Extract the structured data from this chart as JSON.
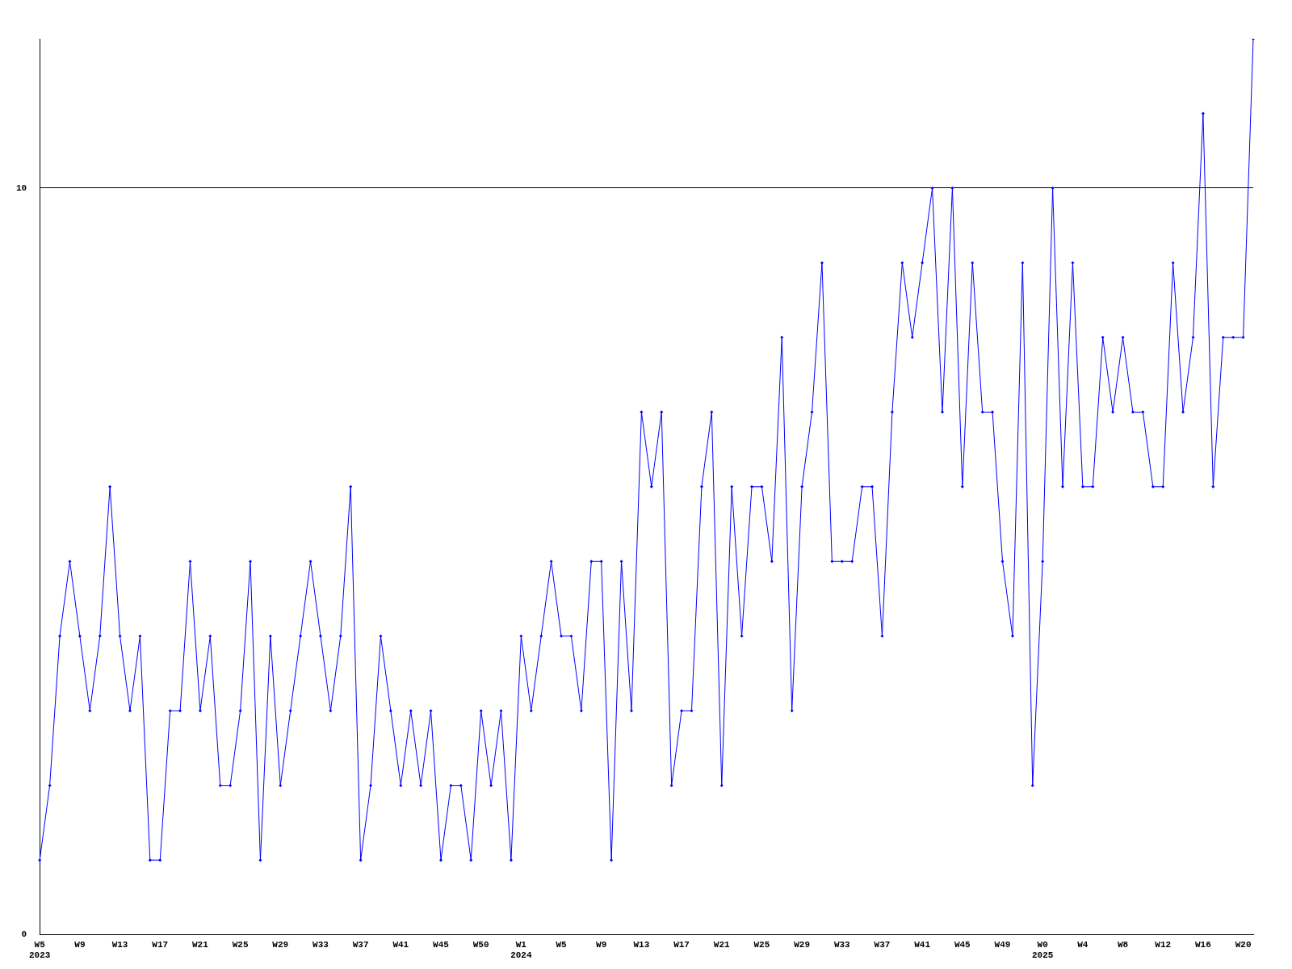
{
  "chart_data": {
    "type": "line",
    "categories": [
      "W5\n2023",
      null,
      null,
      null,
      "W9",
      null,
      null,
      null,
      "W13",
      null,
      null,
      null,
      "W17",
      null,
      null,
      null,
      "W21",
      null,
      null,
      null,
      "W25",
      null,
      null,
      null,
      "W29",
      null,
      null,
      null,
      "W33",
      null,
      null,
      null,
      "W37",
      null,
      null,
      null,
      "W41",
      null,
      null,
      null,
      "W45",
      null,
      null,
      null,
      "W50",
      null,
      null,
      null,
      "W1\n2024",
      null,
      null,
      null,
      "W5",
      null,
      null,
      null,
      "W9",
      null,
      null,
      null,
      "W13",
      null,
      null,
      null,
      "W17",
      null,
      null,
      null,
      "W21",
      null,
      null,
      null,
      "W25",
      null,
      null,
      null,
      "W29",
      null,
      null,
      null,
      "W33",
      null,
      null,
      null,
      "W37",
      null,
      null,
      null,
      "W41",
      null,
      null,
      null,
      "W45",
      null,
      null,
      null,
      "W49",
      null,
      null,
      null,
      "W0\n2025",
      null,
      null,
      null,
      "W4",
      null,
      null,
      null,
      "W8",
      null,
      null,
      null,
      "W12",
      null,
      null,
      null,
      "W16",
      null,
      null,
      null,
      "W20",
      null
    ],
    "series": [
      {
        "color": "#0000ff",
        "values": [
          1,
          2,
          4,
          5,
          4,
          3,
          4,
          6,
          4,
          3,
          4,
          1,
          1,
          3,
          3,
          5,
          3,
          4,
          2,
          2,
          3,
          5,
          1,
          4,
          2,
          3,
          4,
          5,
          4,
          3,
          4,
          6,
          1,
          2,
          4,
          3,
          2,
          3,
          2,
          3,
          1,
          2,
          2,
          1,
          3,
          2,
          3,
          1,
          4,
          3,
          4,
          5,
          4,
          4,
          3,
          5,
          5,
          1,
          5,
          3,
          7,
          6,
          7,
          2,
          3,
          3,
          6,
          7,
          2,
          6,
          4,
          6,
          6,
          5,
          8,
          3,
          6,
          7,
          9,
          5,
          5,
          5,
          6,
          6,
          4,
          7,
          9,
          8,
          9,
          10,
          7,
          10,
          6,
          9,
          7,
          7,
          5,
          4,
          9,
          2,
          5,
          10,
          6,
          9,
          6,
          6,
          8,
          7,
          8,
          7,
          7,
          6,
          6,
          9,
          7,
          8,
          11,
          6,
          8,
          8,
          8,
          12
        ]
      }
    ],
    "ylim": [
      0,
      12
    ],
    "yticks": [
      0,
      10
    ],
    "grid": "y",
    "legend": false,
    "marker": "diamond",
    "line_style": "solid"
  }
}
